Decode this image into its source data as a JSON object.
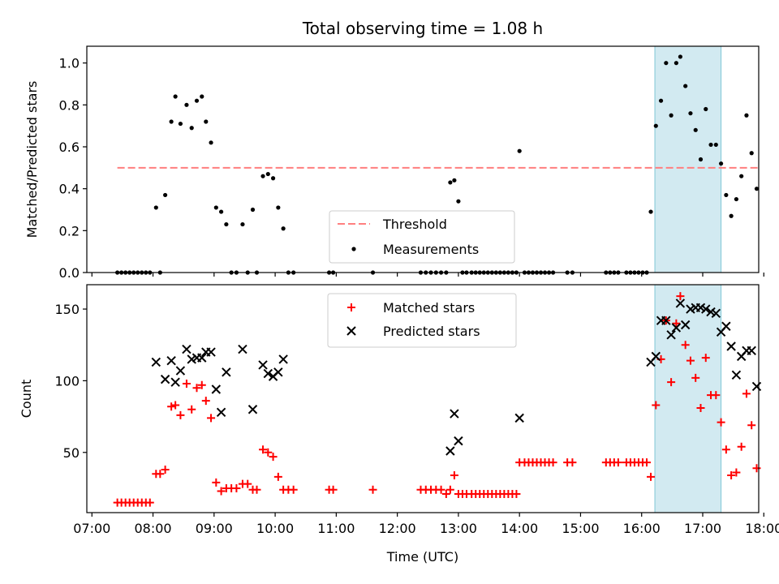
{
  "chart_data": [
    {
      "type": "scatter",
      "title": "Total observing time = 1.08 h",
      "xlabel": "",
      "ylabel": "Matched/Predicted stars",
      "ylim": [
        0,
        1.08
      ],
      "xlim": [
        "06:55",
        "17:55"
      ],
      "yticks": [
        0.0,
        0.2,
        0.4,
        0.6,
        0.8,
        1.0
      ],
      "ytick_labels": [
        "0.0",
        "0.2",
        "0.4",
        "0.6",
        "0.8",
        "1.0"
      ],
      "legend_position": "lower-center",
      "highlight_span": {
        "start": "16:13",
        "end": "17:18",
        "color": "#add8e6"
      },
      "threshold": {
        "name": "Threshold",
        "value": 0.5,
        "x_start": "07:25",
        "x_end": "17:55",
        "color": "#ff7f7f"
      },
      "series": [
        {
          "name": "Measurements",
          "color": "#000000",
          "marker": "dot",
          "points": [
            [
              "07:25",
              0
            ],
            [
              "07:29",
              0
            ],
            [
              "07:33",
              0
            ],
            [
              "07:37",
              0
            ],
            [
              "07:41",
              0
            ],
            [
              "07:45",
              0
            ],
            [
              "07:49",
              0
            ],
            [
              "07:53",
              0
            ],
            [
              "07:57",
              0
            ],
            [
              "08:03",
              0.31
            ],
            [
              "08:07",
              0
            ],
            [
              "08:12",
              0.37
            ],
            [
              "08:18",
              0.72
            ],
            [
              "08:22",
              0.84
            ],
            [
              "08:27",
              0.71
            ],
            [
              "08:33",
              0.8
            ],
            [
              "08:38",
              0.69
            ],
            [
              "08:43",
              0.82
            ],
            [
              "08:48",
              0.84
            ],
            [
              "08:52",
              0.72
            ],
            [
              "08:57",
              0.62
            ],
            [
              "09:02",
              0.31
            ],
            [
              "09:07",
              0.29
            ],
            [
              "09:12",
              0.23
            ],
            [
              "09:17",
              0
            ],
            [
              "09:22",
              0
            ],
            [
              "09:28",
              0.23
            ],
            [
              "09:33",
              0
            ],
            [
              "09:38",
              0.3
            ],
            [
              "09:42",
              0
            ],
            [
              "09:48",
              0.46
            ],
            [
              "09:53",
              0.47
            ],
            [
              "09:58",
              0.45
            ],
            [
              "10:03",
              0.31
            ],
            [
              "10:08",
              0.21
            ],
            [
              "10:13",
              0
            ],
            [
              "10:18",
              0
            ],
            [
              "10:53",
              0
            ],
            [
              "10:57",
              0
            ],
            [
              "11:36",
              0
            ],
            [
              "12:23",
              0
            ],
            [
              "12:28",
              0
            ],
            [
              "12:33",
              0
            ],
            [
              "12:38",
              0
            ],
            [
              "12:43",
              0
            ],
            [
              "12:48",
              0
            ],
            [
              "12:52",
              0.43
            ],
            [
              "12:56",
              0.44
            ],
            [
              "13:00",
              0.34
            ],
            [
              "13:04",
              0
            ],
            [
              "13:08",
              0
            ],
            [
              "13:13",
              0
            ],
            [
              "13:17",
              0
            ],
            [
              "13:21",
              0
            ],
            [
              "13:25",
              0
            ],
            [
              "13:29",
              0
            ],
            [
              "13:33",
              0
            ],
            [
              "13:37",
              0
            ],
            [
              "13:41",
              0
            ],
            [
              "13:45",
              0
            ],
            [
              "13:49",
              0
            ],
            [
              "13:53",
              0
            ],
            [
              "13:57",
              0
            ],
            [
              "14:00",
              0.58
            ],
            [
              "14:05",
              0
            ],
            [
              "14:09",
              0
            ],
            [
              "14:13",
              0
            ],
            [
              "14:17",
              0
            ],
            [
              "14:21",
              0
            ],
            [
              "14:25",
              0
            ],
            [
              "14:29",
              0
            ],
            [
              "14:33",
              0
            ],
            [
              "14:47",
              0
            ],
            [
              "14:52",
              0
            ],
            [
              "15:25",
              0
            ],
            [
              "15:29",
              0
            ],
            [
              "15:33",
              0
            ],
            [
              "15:37",
              0
            ],
            [
              "15:45",
              0
            ],
            [
              "15:49",
              0
            ],
            [
              "15:53",
              0
            ],
            [
              "15:57",
              0
            ],
            [
              "16:01",
              0
            ],
            [
              "16:05",
              0
            ],
            [
              "16:09",
              0.29
            ],
            [
              "16:14",
              0.7
            ],
            [
              "16:19",
              0.82
            ],
            [
              "16:24",
              1.0
            ],
            [
              "16:29",
              0.75
            ],
            [
              "16:34",
              1.0
            ],
            [
              "16:38",
              1.03
            ],
            [
              "16:43",
              0.89
            ],
            [
              "16:48",
              0.76
            ],
            [
              "16:53",
              0.68
            ],
            [
              "16:58",
              0.54
            ],
            [
              "17:03",
              0.78
            ],
            [
              "17:08",
              0.61
            ],
            [
              "17:13",
              0.61
            ],
            [
              "17:18",
              0.52
            ],
            [
              "17:23",
              0.37
            ],
            [
              "17:28",
              0.27
            ],
            [
              "17:33",
              0.35
            ],
            [
              "17:38",
              0.46
            ],
            [
              "17:43",
              0.75
            ],
            [
              "17:48",
              0.57
            ],
            [
              "17:53",
              0.4
            ]
          ]
        }
      ]
    },
    {
      "type": "scatter",
      "title": "",
      "xlabel": "Time (UTC)",
      "ylabel": "Count",
      "ylim": [
        8,
        167
      ],
      "xlim": [
        "06:55",
        "17:55"
      ],
      "yticks": [
        50,
        100,
        150
      ],
      "ytick_labels": [
        "50",
        "100",
        "150"
      ],
      "xticks": [
        "07:00",
        "08:00",
        "09:00",
        "10:00",
        "11:00",
        "12:00",
        "13:00",
        "14:00",
        "15:00",
        "16:00",
        "17:00",
        "18:00"
      ],
      "legend_position": "upper-center",
      "highlight_span": {
        "start": "16:13",
        "end": "17:18",
        "color": "#add8e6"
      },
      "series": [
        {
          "name": "Matched stars",
          "color": "#ff0000",
          "marker": "plus",
          "points": [
            [
              "07:25",
              15
            ],
            [
              "07:29",
              15
            ],
            [
              "07:33",
              15
            ],
            [
              "07:37",
              15
            ],
            [
              "07:41",
              15
            ],
            [
              "07:45",
              15
            ],
            [
              "07:49",
              15
            ],
            [
              "07:53",
              15
            ],
            [
              "07:57",
              15
            ],
            [
              "08:03",
              35
            ],
            [
              "08:07",
              35
            ],
            [
              "08:12",
              38
            ],
            [
              "08:18",
              82
            ],
            [
              "08:22",
              83
            ],
            [
              "08:27",
              76
            ],
            [
              "08:33",
              98
            ],
            [
              "08:38",
              80
            ],
            [
              "08:43",
              95
            ],
            [
              "08:48",
              97
            ],
            [
              "08:52",
              86
            ],
            [
              "08:57",
              74
            ],
            [
              "09:02",
              29
            ],
            [
              "09:07",
              23
            ],
            [
              "09:12",
              25
            ],
            [
              "09:17",
              25
            ],
            [
              "09:22",
              25
            ],
            [
              "09:28",
              28
            ],
            [
              "09:33",
              28
            ],
            [
              "09:38",
              24
            ],
            [
              "09:42",
              24
            ],
            [
              "09:48",
              52
            ],
            [
              "09:53",
              50
            ],
            [
              "09:58",
              47
            ],
            [
              "10:03",
              33
            ],
            [
              "10:08",
              24
            ],
            [
              "10:13",
              24
            ],
            [
              "10:18",
              24
            ],
            [
              "10:53",
              24
            ],
            [
              "10:57",
              24
            ],
            [
              "11:36",
              24
            ],
            [
              "12:23",
              24
            ],
            [
              "12:28",
              24
            ],
            [
              "12:33",
              24
            ],
            [
              "12:38",
              24
            ],
            [
              "12:43",
              24
            ],
            [
              "12:48",
              21
            ],
            [
              "12:52",
              24
            ],
            [
              "12:56",
              34
            ],
            [
              "13:00",
              21
            ],
            [
              "13:04",
              21
            ],
            [
              "13:08",
              21
            ],
            [
              "13:13",
              21
            ],
            [
              "13:17",
              21
            ],
            [
              "13:21",
              21
            ],
            [
              "13:25",
              21
            ],
            [
              "13:29",
              21
            ],
            [
              "13:33",
              21
            ],
            [
              "13:37",
              21
            ],
            [
              "13:41",
              21
            ],
            [
              "13:45",
              21
            ],
            [
              "13:49",
              21
            ],
            [
              "13:53",
              21
            ],
            [
              "13:57",
              21
            ],
            [
              "14:00",
              43
            ],
            [
              "14:05",
              43
            ],
            [
              "14:09",
              43
            ],
            [
              "14:13",
              43
            ],
            [
              "14:17",
              43
            ],
            [
              "14:21",
              43
            ],
            [
              "14:25",
              43
            ],
            [
              "14:29",
              43
            ],
            [
              "14:33",
              43
            ],
            [
              "14:47",
              43
            ],
            [
              "14:52",
              43
            ],
            [
              "15:25",
              43
            ],
            [
              "15:29",
              43
            ],
            [
              "15:33",
              43
            ],
            [
              "15:37",
              43
            ],
            [
              "15:45",
              43
            ],
            [
              "15:49",
              43
            ],
            [
              "15:53",
              43
            ],
            [
              "15:57",
              43
            ],
            [
              "16:01",
              43
            ],
            [
              "16:05",
              43
            ],
            [
              "16:09",
              33
            ],
            [
              "16:14",
              83
            ],
            [
              "16:19",
              115
            ],
            [
              "16:24",
              142
            ],
            [
              "16:29",
              99
            ],
            [
              "16:34",
              140
            ],
            [
              "16:38",
              159
            ],
            [
              "16:43",
              125
            ],
            [
              "16:48",
              114
            ],
            [
              "16:53",
              102
            ],
            [
              "16:58",
              81
            ],
            [
              "17:03",
              116
            ],
            [
              "17:08",
              90
            ],
            [
              "17:13",
              90
            ],
            [
              "17:18",
              71
            ],
            [
              "17:23",
              52
            ],
            [
              "17:28",
              34
            ],
            [
              "17:33",
              36
            ],
            [
              "17:38",
              54
            ],
            [
              "17:43",
              91
            ],
            [
              "17:48",
              69
            ],
            [
              "17:53",
              39
            ]
          ]
        },
        {
          "name": "Predicted stars",
          "color": "#000000",
          "marker": "x",
          "points": [
            [
              "08:03",
              113
            ],
            [
              "08:12",
              101
            ],
            [
              "08:18",
              114
            ],
            [
              "08:22",
              99
            ],
            [
              "08:27",
              107
            ],
            [
              "08:33",
              122
            ],
            [
              "08:38",
              115
            ],
            [
              "08:43",
              116
            ],
            [
              "08:48",
              116
            ],
            [
              "08:52",
              120
            ],
            [
              "08:57",
              120
            ],
            [
              "09:02",
              94
            ],
            [
              "09:07",
              78
            ],
            [
              "09:12",
              106
            ],
            [
              "09:28",
              122
            ],
            [
              "09:38",
              80
            ],
            [
              "09:48",
              111
            ],
            [
              "09:53",
              105
            ],
            [
              "09:58",
              103
            ],
            [
              "10:03",
              106
            ],
            [
              "10:08",
              115
            ],
            [
              "12:52",
              51
            ],
            [
              "12:56",
              77
            ],
            [
              "13:00",
              58
            ],
            [
              "14:00",
              74
            ],
            [
              "16:09",
              113
            ],
            [
              "16:14",
              117
            ],
            [
              "16:19",
              142
            ],
            [
              "16:24",
              142
            ],
            [
              "16:29",
              132
            ],
            [
              "16:34",
              137
            ],
            [
              "16:38",
              154
            ],
            [
              "16:43",
              139
            ],
            [
              "16:48",
              150
            ],
            [
              "16:53",
              151
            ],
            [
              "16:58",
              151
            ],
            [
              "17:03",
              150
            ],
            [
              "17:08",
              148
            ],
            [
              "17:13",
              147
            ],
            [
              "17:18",
              134
            ],
            [
              "17:23",
              138
            ],
            [
              "17:28",
              124
            ],
            [
              "17:33",
              104
            ],
            [
              "17:38",
              117
            ],
            [
              "17:43",
              121
            ],
            [
              "17:48",
              121
            ],
            [
              "17:53",
              96
            ]
          ]
        }
      ]
    }
  ]
}
